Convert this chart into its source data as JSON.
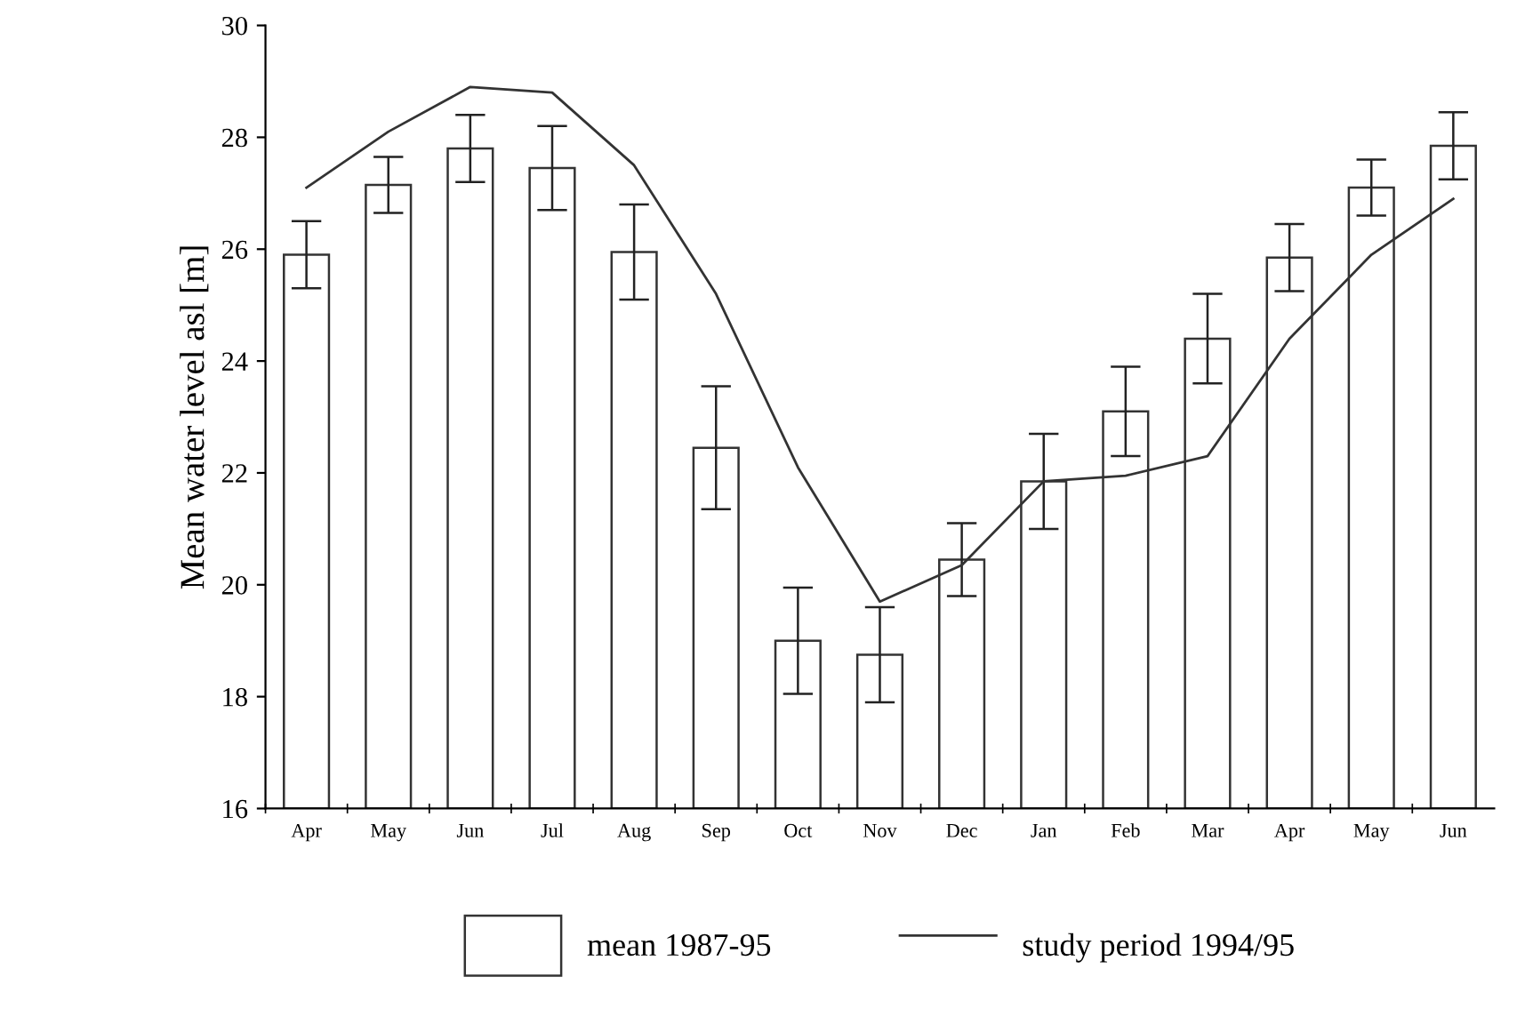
{
  "chart_data": {
    "type": "bar",
    "ylabel": "Mean water level asl [m]",
    "categories": [
      "Apr",
      "May",
      "Jun",
      "Jul",
      "Aug",
      "Sep",
      "Oct",
      "Nov",
      "Dec",
      "Jan",
      "Feb",
      "Mar",
      "Apr",
      "May",
      "Jun"
    ],
    "series": [
      {
        "name": "mean 1987-95",
        "color": "#ffffff",
        "values": [
          25.9,
          27.15,
          27.8,
          27.45,
          25.95,
          22.45,
          19.0,
          18.75,
          20.45,
          21.85,
          23.1,
          24.4,
          25.85,
          27.1,
          27.85
        ],
        "errors": [
          0.6,
          0.5,
          0.6,
          0.75,
          0.85,
          1.1,
          0.95,
          0.85,
          0.65,
          0.85,
          0.8,
          0.8,
          0.6,
          0.5,
          0.6
        ]
      },
      {
        "name": "study period 1994/95",
        "type": "line",
        "color": "#333333",
        "values": [
          27.1,
          28.1,
          28.9,
          28.8,
          27.5,
          25.2,
          22.1,
          19.7,
          20.35,
          21.85,
          21.95,
          22.3,
          24.4,
          25.9,
          26.9
        ]
      }
    ],
    "ylim": [
      16,
      30
    ],
    "yticks": [
      16,
      18,
      20,
      22,
      24,
      26,
      28,
      30
    ],
    "grid": false,
    "legend": "bottom",
    "marker": "none",
    "line_style": "solid"
  }
}
